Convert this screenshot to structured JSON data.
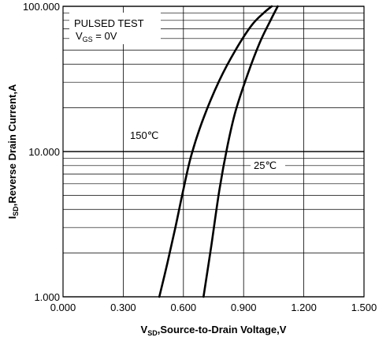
{
  "chart_data": {
    "type": "line",
    "title": "",
    "xlabel_main": "V",
    "xlabel_sub": "SD",
    "xlabel_rest": ",Source-to-Drain Voltage,V",
    "ylabel_main": "I",
    "ylabel_sub": "SD",
    "ylabel_rest": ",Reverse Drain Current,A",
    "xlim": [
      0.0,
      1.5
    ],
    "ylim": [
      1.0,
      100.0
    ],
    "yscale": "log",
    "x_ticks": [
      "0.000",
      "0.300",
      "0.600",
      "0.900",
      "1.200",
      "1.500"
    ],
    "y_ticks": [
      {
        "value": 100.0,
        "label": "100.000"
      },
      {
        "value": 10.0,
        "label": "10.000"
      },
      {
        "value": 1.0,
        "label": "1.000"
      }
    ],
    "grid": true,
    "annotation": {
      "line1": "PULSED TEST",
      "line2_main": "V",
      "line2_sub": "GS",
      "line2_rest": " = 0V"
    },
    "series": [
      {
        "name": "150℃",
        "x": [
          0.48,
          0.52,
          0.56,
          0.6,
          0.64,
          0.7,
          0.78,
          0.86,
          0.94,
          1.0,
          1.04
        ],
        "y": [
          1.0,
          1.7,
          3.0,
          5.5,
          9.5,
          17.0,
          31.0,
          50.0,
          74.0,
          90.0,
          100.0
        ]
      },
      {
        "name": "25℃",
        "x": [
          0.7,
          0.74,
          0.78,
          0.82,
          0.86,
          0.92,
          0.98,
          1.03,
          1.07
        ],
        "y": [
          1.0,
          2.3,
          5.5,
          11.0,
          19.0,
          34.0,
          56.0,
          78.0,
          100.0
        ]
      }
    ]
  }
}
